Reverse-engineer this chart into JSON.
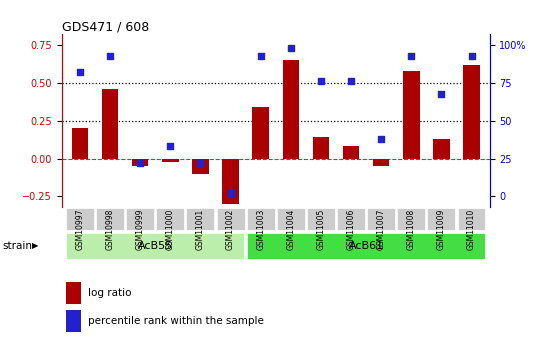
{
  "title": "GDS471 / 608",
  "samples": [
    "GSM10997",
    "GSM10998",
    "GSM10999",
    "GSM11000",
    "GSM11001",
    "GSM11002",
    "GSM11003",
    "GSM11004",
    "GSM11005",
    "GSM11006",
    "GSM11007",
    "GSM11008",
    "GSM11009",
    "GSM11010"
  ],
  "log_ratio": [
    0.2,
    0.46,
    -0.05,
    -0.02,
    -0.1,
    -0.3,
    0.34,
    0.65,
    0.14,
    0.08,
    -0.05,
    0.58,
    0.13,
    0.62
  ],
  "percentile_rank": [
    82,
    93,
    22,
    33,
    22,
    2,
    93,
    98,
    76,
    76,
    38,
    93,
    68,
    93
  ],
  "group1_label": "AcB55",
  "group1_count": 6,
  "group2_label": "AcB61",
  "group2_count": 8,
  "strain_label": "strain",
  "yticks_left": [
    -0.25,
    0.0,
    0.25,
    0.5,
    0.75
  ],
  "yticks_right": [
    0,
    25,
    50,
    75,
    100
  ],
  "ymin": -0.32,
  "ymax": 0.82,
  "hline_y": [
    0.25,
    0.5
  ],
  "bar_color": "#aa0000",
  "dot_color": "#2222cc",
  "group1_color": "#bbeeaa",
  "group2_color": "#44dd44",
  "tick_label_bg": "#cccccc",
  "bg_color": "#f0f0f0",
  "legend_logratio": "log ratio",
  "legend_percentile": "percentile rank within the sample",
  "left_label_color": "#cc0000",
  "right_label_color": "#0000cc"
}
